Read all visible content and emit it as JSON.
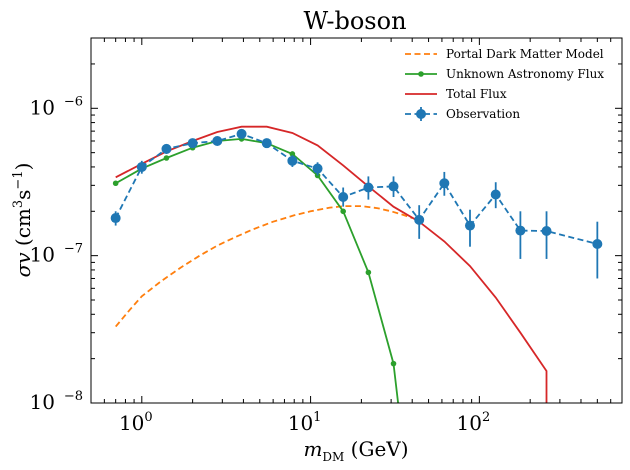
{
  "chart_data": {
    "type": "line",
    "title": "W-boson",
    "xlabel": "m_DM (GeV)",
    "ylabel": "σv (cm³s⁻¹)",
    "xscale": "log",
    "yscale": "log",
    "xlim": [
      0.5,
      700
    ],
    "ylim": [
      1e-08,
      3e-06
    ],
    "grid": false,
    "legend_placement": "top-right",
    "x_ticks": [
      {
        "value": 1,
        "base": "10",
        "exp": "0"
      },
      {
        "value": 10,
        "base": "10",
        "exp": "1"
      },
      {
        "value": 100,
        "base": "10",
        "exp": "2"
      }
    ],
    "y_ticks": [
      {
        "value": 1e-08,
        "base": "10",
        "exp": "−8"
      },
      {
        "value": 1e-07,
        "base": "10",
        "exp": "−7"
      },
      {
        "value": 1e-06,
        "base": "10",
        "exp": "−6"
      }
    ],
    "series": [
      {
        "name": "Portal Dark Matter Model",
        "color": "#ff7f0e",
        "style": "dashed",
        "x": [
          0.7,
          0.85,
          1.0,
          1.3,
          1.7,
          2.2,
          2.8,
          3.5,
          4.5,
          6,
          8,
          10,
          13,
          16,
          20,
          25,
          30,
          35,
          40
        ],
        "y": [
          3.3e-08,
          4.3e-08,
          5.3e-08,
          6.7e-08,
          8.3e-08,
          1e-07,
          1.17e-07,
          1.32e-07,
          1.5e-07,
          1.7e-07,
          1.88e-07,
          2e-07,
          2.12e-07,
          2.17e-07,
          2.17e-07,
          2.1e-07,
          2e-07,
          1.9e-07,
          1.8e-07
        ]
      },
      {
        "name": "Unknown Astronomy Flux",
        "color": "#2ca02c",
        "style": "solid-dots",
        "x": [
          0.7,
          1.0,
          1.4,
          2.0,
          2.8,
          3.9,
          5.5,
          7.8,
          11,
          15.6,
          22,
          31,
          33
        ],
        "y": [
          3.1e-07,
          3.9e-07,
          4.6e-07,
          5.4e-07,
          6e-07,
          6.2e-07,
          5.8e-07,
          4.9e-07,
          3.5e-07,
          2e-07,
          7.7e-08,
          1.85e-08,
          1e-08
        ]
      },
      {
        "name": "Total Flux",
        "color": "#d62728",
        "style": "solid",
        "x": [
          0.7,
          1.0,
          1.4,
          2.0,
          2.8,
          3.9,
          5.5,
          7.8,
          11,
          15.6,
          22,
          31,
          44,
          62,
          88,
          125,
          175,
          250,
          250
        ],
        "y": [
          3.4e-07,
          4.2e-07,
          5.1e-07,
          6e-07,
          6.9e-07,
          7.5e-07,
          7.5e-07,
          6.8e-07,
          5.6e-07,
          4.1e-07,
          2.95e-07,
          2.15e-07,
          1.7e-07,
          1.25e-07,
          8.5e-08,
          5.2e-08,
          3e-08,
          1.65e-08,
          1e-08
        ]
      },
      {
        "name": "Observation",
        "color": "#1f77b4",
        "style": "dashed-errorbars",
        "x": [
          0.7,
          1.0,
          1.4,
          2.0,
          2.8,
          3.9,
          5.5,
          7.8,
          11,
          15.6,
          22,
          31,
          44,
          62,
          88,
          125,
          175,
          250,
          500
        ],
        "y": [
          1.8e-07,
          4e-07,
          5.3e-07,
          5.8e-07,
          6e-07,
          6.7e-07,
          5.8e-07,
          4.4e-07,
          3.9e-07,
          2.5e-07,
          2.9e-07,
          2.95e-07,
          1.75e-07,
          3.1e-07,
          1.6e-07,
          2.6e-07,
          1.48e-07,
          1.47e-07,
          1.2e-07
        ],
        "err_low": [
          1.6e-07,
          3.6e-07,
          4.9e-07,
          5.4e-07,
          5.6e-07,
          6.2e-07,
          5.4e-07,
          4e-07,
          3.5e-07,
          2.15e-07,
          2.4e-07,
          2.5e-07,
          1.3e-07,
          2.55e-07,
          1.15e-07,
          2.1e-07,
          9.5e-08,
          9.5e-08,
          7e-08
        ],
        "err_high": [
          2e-07,
          4.4e-07,
          5.7e-07,
          6.2e-07,
          6.4e-07,
          7.2e-07,
          6.2e-07,
          4.8e-07,
          4.3e-07,
          2.9e-07,
          3.45e-07,
          3.45e-07,
          2.2e-07,
          3.7e-07,
          2.05e-07,
          3.15e-07,
          2e-07,
          2e-07,
          1.7e-07
        ]
      }
    ]
  }
}
